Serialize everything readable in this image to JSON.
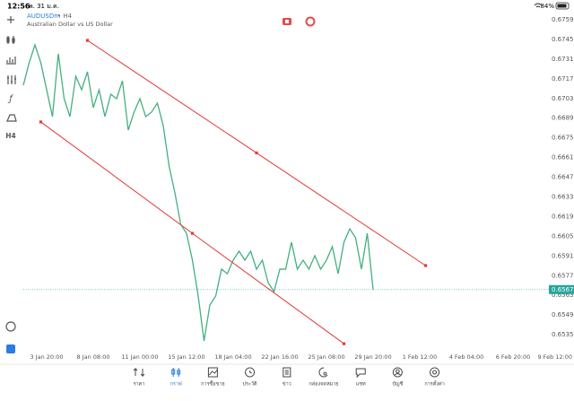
{
  "status_bar": {
    "time": "12:56",
    "date": "พ. 31 ม.ค.",
    "battery": "84%"
  },
  "header": {
    "symbol": "AUDUSDm",
    "period": "• H4",
    "description": "Australian Dollar vs US Dollar"
  },
  "toolbar": {
    "timeframe": "H4"
  },
  "nav": [
    "ราคา",
    "กราฟ",
    "การซื้อขาย",
    "ประวัติ",
    "ข่าว",
    "กล่องจดหมาย",
    "แชท",
    "บัญชี",
    "การตั้งค่า"
  ],
  "chart_data": {
    "type": "line",
    "grid": false,
    "categories": [
      null,
      null,
      null,
      null,
      "3 Jan 20:00",
      null,
      null,
      null,
      null,
      null,
      null,
      null,
      "8 Jan 08:00",
      null,
      null,
      null,
      null,
      null,
      null,
      null,
      "11 Jan 00:00",
      null,
      null,
      null,
      null,
      null,
      null,
      null,
      "15 Jan 12:00",
      null,
      null,
      null,
      null,
      null,
      null,
      null,
      "18 Jan 04:00",
      null,
      null,
      null,
      null,
      null,
      null,
      null,
      "22 Jan 16:00",
      null,
      null,
      null,
      null,
      null,
      null,
      null,
      "25 Jan 08:00",
      null,
      null,
      null,
      null,
      null,
      null,
      null,
      "29 Jan 20:00",
      null,
      null,
      null,
      null,
      null,
      null,
      null,
      "1 Feb 12:00",
      null,
      null,
      null,
      null,
      null,
      null,
      null,
      "4 Feb 04:00",
      null,
      null,
      null,
      null,
      null,
      null,
      null,
      "6 Feb 20:00",
      null,
      null,
      null,
      null,
      null,
      null,
      null,
      "9 Feb 12:00",
      null,
      null
    ],
    "ylim": [
      0.65255,
      0.67641
    ],
    "yticks": [
      {
        "value": 0.6759,
        "label": "0.67590"
      },
      {
        "value": 0.6745,
        "label": "0.67450"
      },
      {
        "value": 0.6731,
        "label": "0.67310"
      },
      {
        "value": 0.6717,
        "label": "0.67170"
      },
      {
        "value": 0.6703,
        "label": "0.67030"
      },
      {
        "value": 0.6689,
        "label": "0.66890"
      },
      {
        "value": 0.6675,
        "label": "0.66750"
      },
      {
        "value": 0.6661,
        "label": "0.66610"
      },
      {
        "value": 0.6647,
        "label": "0.66470"
      },
      {
        "value": 0.6633,
        "label": "0.66330"
      },
      {
        "value": 0.6619,
        "label": "0.66190"
      },
      {
        "value": 0.6605,
        "label": "0.66050"
      },
      {
        "value": 0.6591,
        "label": "0.65910"
      },
      {
        "value": 0.6577,
        "label": "0.65770"
      },
      {
        "value": 0.6563,
        "label": "0.65630"
      },
      {
        "value": 0.6549,
        "label": "0.65490"
      },
      {
        "value": 0.6535,
        "label": "0.65350"
      }
    ],
    "series": [
      {
        "type": "line",
        "color": "#43b07f",
        "values": [
          0.67124,
          0.67284,
          0.67411,
          0.67284,
          0.67092,
          0.66901,
          0.67348,
          0.67029,
          0.66901,
          0.67188,
          0.67092,
          0.6722,
          0.66965,
          0.67092,
          0.66901,
          0.6706,
          0.67029,
          0.67156,
          0.66805,
          0.66933,
          0.67029,
          0.66901,
          0.66933,
          0.66997,
          0.66837,
          0.6655,
          0.66359,
          0.66135,
          0.66071,
          0.6588,
          0.65625,
          0.65306,
          0.65561,
          0.65625,
          0.65816,
          0.65784,
          0.6588,
          0.65944,
          0.6588,
          0.65944,
          0.65816,
          0.6588,
          0.6572,
          0.65657,
          0.65816,
          0.65816,
          0.66008,
          0.65816,
          0.6588,
          0.65816,
          0.65912,
          0.65816,
          0.6588,
          0.65976,
          0.65784,
          0.66008,
          0.66103,
          0.66039,
          0.65816,
          0.66071,
          0.65671,
          null,
          null,
          null,
          null,
          null,
          null,
          null,
          null,
          null,
          null,
          null,
          null,
          null,
          null,
          null,
          null,
          null,
          null,
          null,
          null,
          null,
          null,
          null,
          null,
          null,
          null,
          null,
          null,
          null,
          null,
          null,
          null,
          null,
          null
        ]
      },
      {
        "type": "trendline",
        "color": "#e53935",
        "values": [
          null,
          null,
          null,
          null,
          null,
          null,
          null,
          null,
          null,
          null,
          null,
          0.67443,
          null,
          null,
          null,
          null,
          null,
          null,
          null,
          null,
          null,
          null,
          null,
          null,
          null,
          null,
          null,
          null,
          null,
          null,
          null,
          null,
          null,
          null,
          null,
          null,
          null,
          null,
          null,
          null,
          0.66643,
          null,
          null,
          null,
          null,
          null,
          null,
          null,
          null,
          null,
          null,
          null,
          null,
          null,
          null,
          null,
          null,
          null,
          null,
          null,
          null,
          null,
          null,
          null,
          null,
          null,
          null,
          null,
          null,
          0.65842,
          null,
          null,
          null,
          null,
          null,
          null,
          null,
          null,
          null,
          null,
          null,
          null,
          null,
          null,
          null,
          null,
          null,
          null,
          null,
          null,
          null,
          null,
          null,
          null,
          null
        ]
      },
      {
        "type": "trendline",
        "color": "#e53935",
        "values": [
          null,
          null,
          null,
          0.66863,
          null,
          null,
          null,
          null,
          null,
          null,
          null,
          null,
          null,
          null,
          null,
          null,
          null,
          null,
          null,
          null,
          null,
          null,
          null,
          null,
          null,
          null,
          null,
          null,
          null,
          0.66071,
          null,
          null,
          null,
          null,
          null,
          null,
          null,
          null,
          null,
          null,
          null,
          null,
          null,
          null,
          null,
          null,
          null,
          null,
          null,
          null,
          null,
          null,
          null,
          null,
          null,
          0.65286,
          null,
          null,
          null,
          null,
          null,
          null,
          null,
          null,
          null,
          null,
          null,
          null,
          null,
          null,
          null,
          null,
          null,
          null,
          null,
          null,
          null,
          null,
          null,
          null,
          null,
          null,
          null,
          null,
          null,
          null,
          null,
          null,
          null,
          null,
          null,
          null,
          null,
          null,
          null
        ]
      }
    ],
    "last_price_color": "#26a69a"
  }
}
